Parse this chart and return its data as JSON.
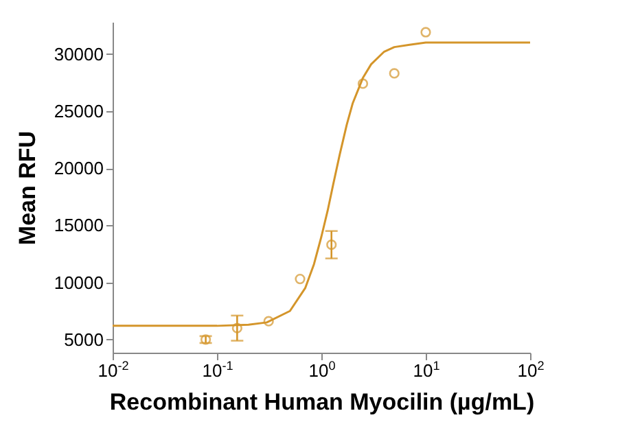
{
  "chart_data": {
    "type": "scatter",
    "xlabel": "Recombinant Human Myocilin (µg/mL)",
    "ylabel": "Mean RFU",
    "log": "x",
    "grid": false,
    "xlim": [
      0.01,
      100
    ],
    "xticks": [
      {
        "value": 0.01,
        "label": "10$^{-2}$"
      },
      {
        "value": 0.1,
        "label": "10$^{-1}$"
      },
      {
        "value": 1,
        "label": "10$^{0}$"
      },
      {
        "value": 10,
        "label": "10$^{1}$"
      },
      {
        "value": 100,
        "label": "10$^{2}$"
      }
    ],
    "ylim": [
      3850,
      32800
    ],
    "yticks": [
      5000,
      10000,
      15000,
      20000,
      25000,
      30000
    ],
    "series": [
      {
        "type": "line",
        "color": "#d4952a",
        "x": [
          0.01,
          0.1,
          0.2,
          0.3,
          0.5,
          0.7,
          0.85,
          1,
          1.15,
          1.3,
          1.5,
          1.75,
          2,
          2.5,
          3,
          4,
          5,
          7,
          10,
          30,
          100
        ],
        "values": [
          6200,
          6200,
          6300,
          6500,
          7500,
          9500,
          11600,
          14000,
          16300,
          18600,
          21200,
          23800,
          25700,
          27900,
          29100,
          30200,
          30600,
          30800,
          31000,
          31000,
          31000
        ]
      },
      {
        "color": "#d4952a",
        "marker": "circle",
        "x": [
          0.078,
          0.156,
          0.3125,
          0.625,
          1.25,
          2.5,
          5,
          10
        ],
        "values": [
          5000,
          6000,
          6600,
          10300,
          13300,
          27400,
          28300,
          31900
        ],
        "errors": [
          300,
          1100,
          null,
          null,
          1200,
          null,
          null,
          null
        ]
      }
    ]
  }
}
